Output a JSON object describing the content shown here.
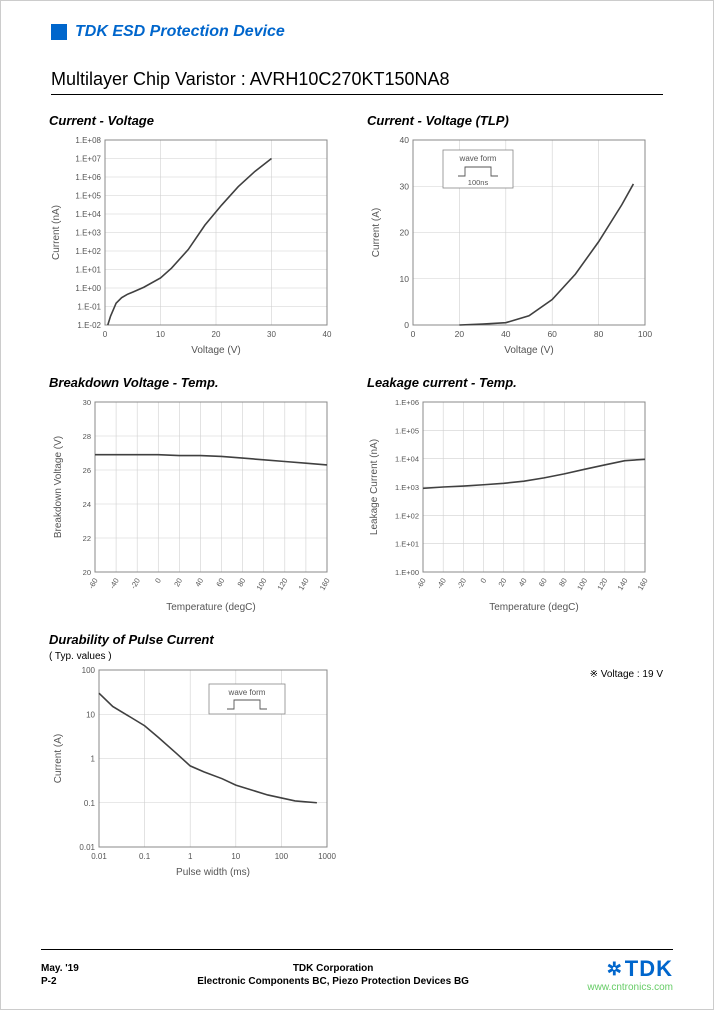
{
  "header": {
    "text": "TDK ESD Protection Device"
  },
  "title": "Multilayer Chip Varistor : AVRH10C270KT150NA8",
  "charts": {
    "iv": {
      "type": "line",
      "title": "Current - Voltage",
      "xlabel": "Voltage (V)",
      "ylabel": "Current (nA)",
      "yscale": "log",
      "xlim": [
        0,
        40
      ],
      "xtick_step": 10,
      "yticks": [
        "1.E-02",
        "1.E-01",
        "1.E+00",
        "1.E+01",
        "1.E+02",
        "1.E+03",
        "1.E+04",
        "1.E+05",
        "1.E+06",
        "1.E+07",
        "1.E+08"
      ],
      "data": [
        [
          0.5,
          0.01
        ],
        [
          1,
          0.03
        ],
        [
          2,
          0.15
        ],
        [
          3,
          0.3
        ],
        [
          4,
          0.45
        ],
        [
          5,
          0.6
        ],
        [
          7,
          1.1
        ],
        [
          10,
          3.5
        ],
        [
          12,
          12
        ],
        [
          15,
          120
        ],
        [
          18,
          2500
        ],
        [
          21,
          30000
        ],
        [
          24,
          300000
        ],
        [
          27,
          2000000
        ],
        [
          30,
          10000000
        ]
      ],
      "line_color": "#404040",
      "line_width": 1.6,
      "bg": "#ffffff",
      "grid_color": "#d0d0d0",
      "border_color": "#888888"
    },
    "tlp": {
      "type": "line",
      "title": "Current - Voltage (TLP)",
      "xlabel": "Voltage (V)",
      "ylabel": "Current (A)",
      "xlim": [
        0,
        100
      ],
      "xtick_step": 20,
      "ylim": [
        0,
        40
      ],
      "ytick_step": 10,
      "wave_label": "wave form",
      "wave_time": "100ns",
      "data": [
        [
          20,
          0
        ],
        [
          30,
          0.2
        ],
        [
          40,
          0.5
        ],
        [
          50,
          2
        ],
        [
          60,
          5.5
        ],
        [
          70,
          11
        ],
        [
          80,
          18
        ],
        [
          90,
          26
        ],
        [
          95,
          30.5
        ]
      ],
      "line_color": "#404040",
      "line_width": 1.6,
      "bg": "#ffffff",
      "grid_color": "#d0d0d0",
      "border_color": "#888888"
    },
    "bdv": {
      "type": "line",
      "title": "Breakdown Voltage - Temp.",
      "xlabel": "Temperature (degC)",
      "ylabel": "Breakdown Voltage (V)",
      "xticks": [
        -60,
        -40,
        -20,
        0,
        20,
        40,
        60,
        80,
        100,
        120,
        140,
        160
      ],
      "ylim": [
        20,
        30
      ],
      "ytick_step": 2,
      "data": [
        [
          -60,
          26.9
        ],
        [
          -40,
          26.9
        ],
        [
          -20,
          26.9
        ],
        [
          0,
          26.9
        ],
        [
          20,
          26.85
        ],
        [
          40,
          26.85
        ],
        [
          60,
          26.8
        ],
        [
          80,
          26.7
        ],
        [
          100,
          26.6
        ],
        [
          120,
          26.5
        ],
        [
          140,
          26.4
        ],
        [
          160,
          26.3
        ]
      ],
      "line_color": "#404040",
      "line_width": 1.6,
      "bg": "#ffffff",
      "grid_color": "#d0d0d0",
      "border_color": "#888888"
    },
    "leak": {
      "type": "line",
      "title": "Leakage current - Temp.",
      "xlabel": "Temperature (degC)",
      "ylabel": "Leakage Current (nA)",
      "yscale": "log",
      "xticks": [
        -60,
        -40,
        -20,
        0,
        20,
        40,
        60,
        80,
        100,
        120,
        140,
        160
      ],
      "yticks": [
        "1.E+00",
        "1.E+01",
        "1.E+02",
        "1.E+03",
        "1.E+04",
        "1.E+05",
        "1.E+06"
      ],
      "note": "※ Voltage : 19 V",
      "data": [
        [
          -60,
          900
        ],
        [
          -40,
          1000
        ],
        [
          -20,
          1080
        ],
        [
          0,
          1200
        ],
        [
          20,
          1350
        ],
        [
          40,
          1600
        ],
        [
          60,
          2100
        ],
        [
          80,
          2900
        ],
        [
          100,
          4200
        ],
        [
          120,
          6000
        ],
        [
          140,
          8500
        ],
        [
          160,
          9500
        ]
      ],
      "line_color": "#404040",
      "line_width": 1.6,
      "bg": "#ffffff",
      "grid_color": "#d0d0d0",
      "border_color": "#888888"
    },
    "pulse": {
      "type": "line",
      "title": "Durability of Pulse Current",
      "subtitle": "( Typ. values )",
      "xlabel": "Pulse width (ms)",
      "ylabel": "Current (A)",
      "xscale": "log",
      "yscale": "log",
      "xticks": [
        "0.01",
        "0.1",
        "1",
        "10",
        "100",
        "1000"
      ],
      "yticks": [
        "0.01",
        "0.1",
        "1",
        "10",
        "100"
      ],
      "wave_label": "wave form",
      "data": [
        [
          0.01,
          30
        ],
        [
          0.02,
          15
        ],
        [
          0.05,
          8.5
        ],
        [
          0.1,
          5.5
        ],
        [
          0.2,
          3
        ],
        [
          0.5,
          1.3
        ],
        [
          1,
          0.68
        ],
        [
          2,
          0.5
        ],
        [
          5,
          0.35
        ],
        [
          10,
          0.25
        ],
        [
          50,
          0.15
        ],
        [
          200,
          0.11
        ],
        [
          600,
          0.1
        ]
      ],
      "line_color": "#404040",
      "line_width": 1.6,
      "bg": "#ffffff",
      "grid_color": "#d0d0d0",
      "border_color": "#888888"
    }
  },
  "footer": {
    "date": "May. '19",
    "page": "P-2",
    "company": "TDK Corporation",
    "division": "Electronic Components BC, Piezo Protection Devices BG",
    "logo": "TDK",
    "watermark": "www.cntronics.com"
  },
  "colors": {
    "brand_blue": "#0066cc",
    "text": "#000000",
    "watermark_green": "#66cc66"
  }
}
